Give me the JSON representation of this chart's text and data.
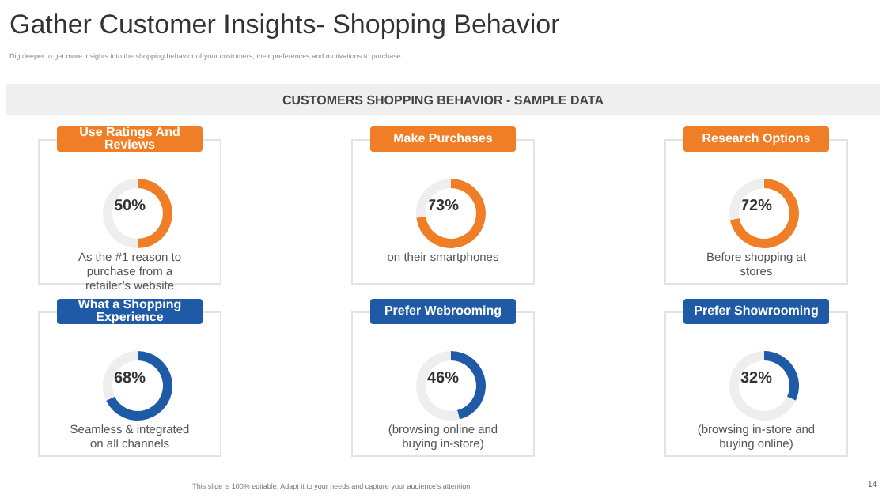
{
  "chart_data": [
    {
      "type": "other",
      "title": "Gather Customer Insights- Shopping Behavior",
      "subtitle": "Dig deeper to get more insights into the shopping behavior of your customers, their preferences and motivations to purchase.",
      "annotations": [
        "CUSTOMERS SHOPPING BEHAVIOR - SAMPLE DATA",
        "This slide is 100% editable. Adapt it to your needs and capture your audience’s attention.",
        "14"
      ]
    },
    {
      "type": "donut",
      "title": "Use Ratings And Reviews",
      "categories": [
        null,
        null
      ],
      "values": [
        50,
        50
      ],
      "colors": [
        "#f07e26",
        "#eeeeee"
      ],
      "annotations": [
        "50%",
        "As the #1 reason to purchase from a retailer’s website"
      ]
    },
    {
      "type": "donut",
      "title": "Make Purchases",
      "categories": [
        null,
        null
      ],
      "values": [
        73,
        27
      ],
      "colors": [
        "#f07e26",
        "#eeeeee"
      ],
      "annotations": [
        "73%",
        "on their smartphones"
      ]
    },
    {
      "type": "donut",
      "title": "Research Options",
      "categories": [
        null,
        null
      ],
      "values": [
        72,
        28
      ],
      "colors": [
        "#f07e26",
        "#eeeeee"
      ],
      "annotations": [
        "72%",
        "Before shopping at stores"
      ]
    },
    {
      "type": "donut",
      "title": "What a Shopping Experience",
      "categories": [
        null,
        null
      ],
      "values": [
        68,
        32
      ],
      "colors": [
        "#1f5aa6",
        "#eeeeee"
      ],
      "annotations": [
        "68%",
        "Seamless & integrated on all channels"
      ]
    },
    {
      "type": "donut",
      "title": "Prefer Webrooming",
      "categories": [
        null,
        null
      ],
      "values": [
        46,
        54
      ],
      "colors": [
        "#1f5aa6",
        "#eeeeee"
      ],
      "annotations": [
        "46%",
        "(browsing online and buying in-store)"
      ]
    },
    {
      "type": "donut",
      "title": "Prefer Showrooming",
      "categories": [
        null,
        null
      ],
      "values": [
        32,
        68
      ],
      "colors": [
        "#1f5aa6",
        "#eeeeee"
      ],
      "annotations": [
        "32%",
        "(browsing in-store and buying online)"
      ]
    }
  ]
}
